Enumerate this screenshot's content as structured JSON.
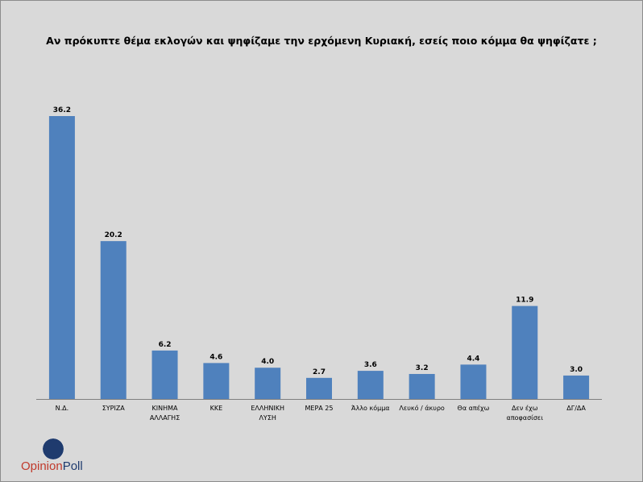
{
  "chart_data": {
    "type": "bar",
    "title": "Αν πρόκυπτε θέμα εκλογών και ψηφίζαμε την ερχόμενη Κυριακή, εσείς ποιο κόμμα θα ψηφίζατε ;",
    "categories": [
      [
        "Ν.Δ."
      ],
      [
        "ΣΥΡΙΖΑ"
      ],
      [
        "ΚΙΝΗΜΑ",
        "ΑΛΛΑΓΗΣ"
      ],
      [
        "ΚΚΕ"
      ],
      [
        "ΕΛΛΗΝΙΚΗ",
        "ΛΥΣΗ"
      ],
      [
        "ΜΕΡΑ 25"
      ],
      [
        "Άλλο κόμμα"
      ],
      [
        "Λευκό / άκυρο"
      ],
      [
        "Θα απέχω"
      ],
      [
        "Δεν έχω",
        "αποφασίσει"
      ],
      [
        "ΔΓ/ΔΑ"
      ]
    ],
    "values": [
      36.2,
      20.2,
      6.2,
      4.6,
      4.0,
      2.7,
      3.6,
      3.2,
      4.4,
      11.9,
      3.0
    ],
    "value_labels": [
      "36.2",
      "20.2",
      "6.2",
      "4.6",
      "4.0",
      "2.7",
      "3.6",
      "3.2",
      "4.4",
      "11.9",
      "3.0"
    ],
    "ylim": [
      0,
      36.2
    ],
    "grid": false,
    "legend": "none",
    "bar_color": "#4f81bd",
    "axis_color": "#7f7f7f"
  },
  "logo": {
    "brand": "OpinionPoll",
    "part1": "Opinion",
    "part2": "Poll",
    "mark_colors": [
      "#1f3b6e",
      "#c0392b"
    ]
  }
}
